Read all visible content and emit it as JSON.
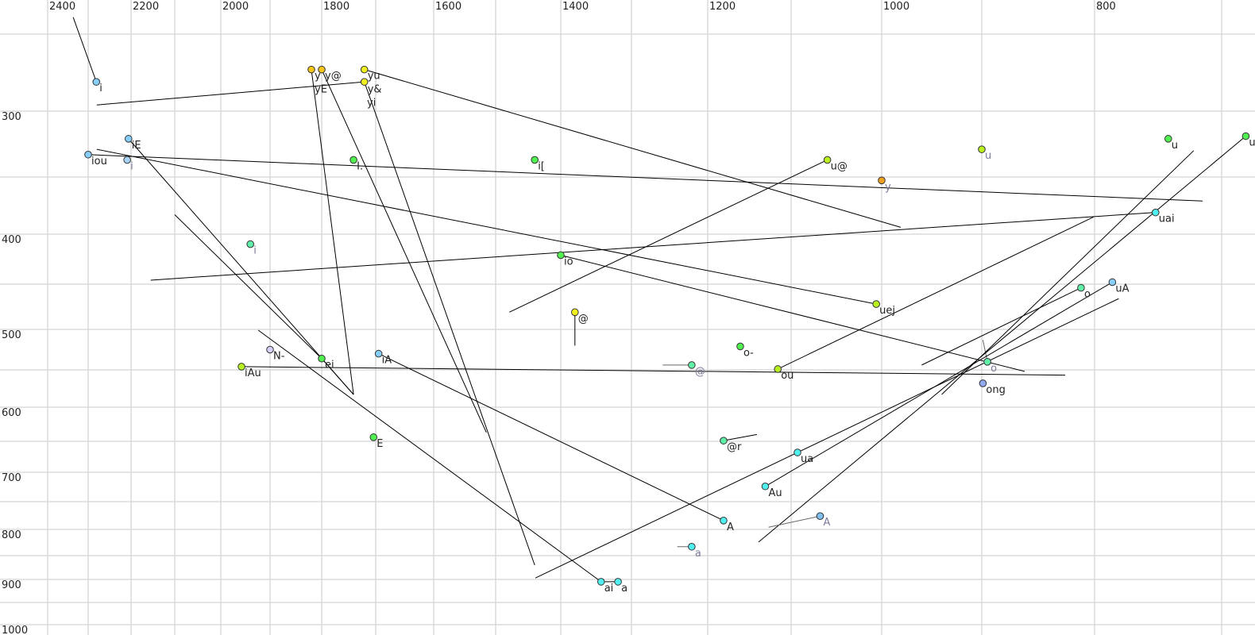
{
  "chart_data": {
    "type": "scatter",
    "x_axis": {
      "reversed": true,
      "position": "top",
      "ticks": [
        2400,
        2200,
        2000,
        1800,
        1600,
        1400,
        1200,
        1000,
        800
      ],
      "grid_step": 100,
      "range": [
        2400,
        700
      ]
    },
    "y_axis": {
      "reversed": false,
      "position": "left",
      "ticks": [
        300,
        400,
        500,
        600,
        700,
        800,
        900,
        1000
      ],
      "grid_step": 50,
      "range": [
        250,
        1000
      ]
    },
    "grid": true,
    "points": [
      {
        "label": "i",
        "x": 2281,
        "y": 281,
        "color": "#87cefa",
        "muted": false
      },
      {
        "label": "y",
        "x": 1820,
        "y": 273,
        "color": "#f5c518",
        "muted": false
      },
      {
        "label": "y@",
        "x": 1800,
        "y": 273,
        "color": "#f5c518",
        "muted": false
      },
      {
        "label": "yu",
        "x": 1721,
        "y": 273,
        "color": "#f0f020",
        "muted": false
      },
      {
        "label": "y&",
        "x": 1721,
        "y": 281,
        "color": "#f0f020",
        "muted": false
      },
      {
        "label": "yE",
        "x": 1820,
        "y": 278,
        "color": "#f5c518",
        "muted": false,
        "hidden_marker": true
      },
      {
        "label": "yi",
        "x": 1722,
        "y": 286,
        "color": "#f0f020",
        "muted": false,
        "hidden_marker": true
      },
      {
        "label": "iE",
        "x": 2206,
        "y": 321,
        "color": "#87cefa",
        "muted": false
      },
      {
        "label": "iou",
        "x": 2300,
        "y": 333,
        "color": "#87cefa",
        "muted": false
      },
      {
        "label": "i",
        "x": 2209,
        "y": 337,
        "color": "#a8d4f8",
        "muted": true
      },
      {
        "label": "I.",
        "x": 1741,
        "y": 337,
        "color": "#50f050",
        "muted": false
      },
      {
        "label": "i[",
        "x": 1440,
        "y": 337,
        "color": "#50f050",
        "muted": false
      },
      {
        "label": "u@",
        "x": 1060,
        "y": 337,
        "color": "#b8f020",
        "muted": false
      },
      {
        "label": "y",
        "x": 1000,
        "y": 353,
        "color": "#f0a020",
        "muted": true
      },
      {
        "label": "u",
        "x": 900,
        "y": 329,
        "color": "#b8f020",
        "muted": true
      },
      {
        "label": "u",
        "x": 742,
        "y": 321,
        "color": "#50f050",
        "muted": false
      },
      {
        "label": "u",
        "x": 681,
        "y": 319,
        "color": "#50f050",
        "muted": false
      },
      {
        "label": "uai",
        "x": 752,
        "y": 381,
        "color": "#50f0f0",
        "muted": false
      },
      {
        "label": "i",
        "x": 1940,
        "y": 410,
        "color": "#60f0a8",
        "muted": true
      },
      {
        "label": "io",
        "x": 1400,
        "y": 421,
        "color": "#50f050",
        "muted": false
      },
      {
        "label": "uej",
        "x": 1006,
        "y": 472,
        "color": "#b8f020",
        "muted": false
      },
      {
        "label": "@",
        "x": 1380,
        "y": 481,
        "color": "#f0f020",
        "muted": false
      },
      {
        "label": "o",
        "x": 812,
        "y": 454,
        "color": "#60f0a8",
        "muted": false
      },
      {
        "label": "uA",
        "x": 786,
        "y": 448,
        "color": "#87cefa",
        "muted": false
      },
      {
        "label": "N-",
        "x": 1900,
        "y": 525,
        "color": "#d8d0f8",
        "muted": false
      },
      {
        "label": "ei",
        "x": 1800,
        "y": 536,
        "color": "#50f050",
        "muted": false
      },
      {
        "label": "iAu",
        "x": 1958,
        "y": 546,
        "color": "#b8f020",
        "muted": false
      },
      {
        "label": "iA",
        "x": 1695,
        "y": 530,
        "color": "#87cefa",
        "muted": false
      },
      {
        "label": "o-",
        "x": 1161,
        "y": 521,
        "color": "#50f050",
        "muted": false
      },
      {
        "label": "@",
        "x": 1221,
        "y": 544,
        "color": "#60f0a8",
        "muted": true
      },
      {
        "label": "ou",
        "x": 1116,
        "y": 549,
        "color": "#b8f020",
        "muted": false
      },
      {
        "label": "o",
        "x": 895,
        "y": 540,
        "color": "#60f0a8",
        "muted": true
      },
      {
        "label": "ong",
        "x": 899,
        "y": 568,
        "color": "#90a8f0",
        "muted": false
      },
      {
        "label": "E",
        "x": 1704,
        "y": 644,
        "color": "#50f050",
        "muted": false
      },
      {
        "label": "@r",
        "x": 1181,
        "y": 649,
        "color": "#60f0a8",
        "muted": false
      },
      {
        "label": "ua",
        "x": 1093,
        "y": 668,
        "color": "#50f0f0",
        "muted": false
      },
      {
        "label": "Au",
        "x": 1131,
        "y": 724,
        "color": "#50f0f0",
        "muted": false
      },
      {
        "label": "A",
        "x": 1181,
        "y": 784,
        "color": "#50f0f0",
        "muted": false
      },
      {
        "label": "A",
        "x": 1068,
        "y": 776,
        "color": "#80c0f0",
        "muted": true
      },
      {
        "label": "a",
        "x": 1221,
        "y": 833,
        "color": "#50f0f0",
        "muted": true
      },
      {
        "label": "ai",
        "x": 1343,
        "y": 905,
        "color": "#50f0f0",
        "muted": false
      },
      {
        "label": "a",
        "x": 1319,
        "y": 905,
        "color": "#50f0f0",
        "muted": false
      }
    ],
    "segments": [
      {
        "from": [
          2337,
          239
        ],
        "to": [
          2281,
          281
        ]
      },
      {
        "from": [
          2280,
          296
        ],
        "to": [
          1721,
          281
        ]
      },
      {
        "from": [
          2300,
          333
        ],
        "to": [
          715,
          371
        ]
      },
      {
        "from": [
          2280,
          329
        ],
        "to": [
          1006,
          472
        ]
      },
      {
        "from": [
          2206,
          321
        ],
        "to": [
          1741,
          583
        ]
      },
      {
        "from": [
          2100,
          383
        ],
        "to": [
          1800,
          536
        ]
      },
      {
        "from": [
          1800,
          536
        ],
        "to": [
          1741,
          583
        ]
      },
      {
        "from": [
          1820,
          273
        ],
        "to": [
          1741,
          583
        ]
      },
      {
        "from": [
          1800,
          273
        ],
        "to": [
          1515,
          637
        ]
      },
      {
        "from": [
          1721,
          281
        ],
        "to": [
          1440,
          870
        ]
      },
      {
        "from": [
          1721,
          273
        ],
        "to": [
          981,
          394
        ]
      },
      {
        "from": [
          2155,
          446
        ],
        "to": [
          752,
          381
        ]
      },
      {
        "from": [
          1924,
          501
        ],
        "to": [
          1343,
          905
        ]
      },
      {
        "from": [
          1343,
          905
        ],
        "to": [
          1319,
          905
        ]
      },
      {
        "from": [
          1958,
          546
        ],
        "to": [
          826,
          557
        ]
      },
      {
        "from": [
          1695,
          530
        ],
        "to": [
          1181,
          784
        ]
      },
      {
        "from": [
          1400,
          421
        ],
        "to": [
          862,
          552
        ]
      },
      {
        "from": [
          1479,
          481
        ],
        "to": [
          1060,
          337
        ]
      },
      {
        "from": [
          1380,
          481
        ],
        "to": [
          1380,
          520
        ]
      },
      {
        "from": [
          1259,
          544
        ],
        "to": [
          1221,
          544
        ],
        "muted": true
      },
      {
        "from": [
          1116,
          549
        ],
        "to": [
          801,
          385
        ]
      },
      {
        "from": [
          812,
          454
        ],
        "to": [
          960,
          544
        ]
      },
      {
        "from": [
          895,
          540
        ],
        "to": [
          899,
          513
        ],
        "muted": true
      },
      {
        "from": [
          722,
          330
        ],
        "to": [
          940,
          583
        ]
      },
      {
        "from": [
          681,
          319
        ],
        "to": [
          1139,
          824
        ]
      },
      {
        "from": [
          786,
          448
        ],
        "to": [
          1131,
          724
        ]
      },
      {
        "from": [
          781,
          466
        ],
        "to": [
          1439,
          897
        ]
      },
      {
        "from": [
          1181,
          649
        ],
        "to": [
          1141,
          640
        ]
      },
      {
        "from": [
          1068,
          776
        ],
        "to": [
          1127,
          796
        ],
        "muted": true
      },
      {
        "from": [
          1221,
          833
        ],
        "to": [
          1240,
          833
        ],
        "muted": true
      }
    ]
  }
}
